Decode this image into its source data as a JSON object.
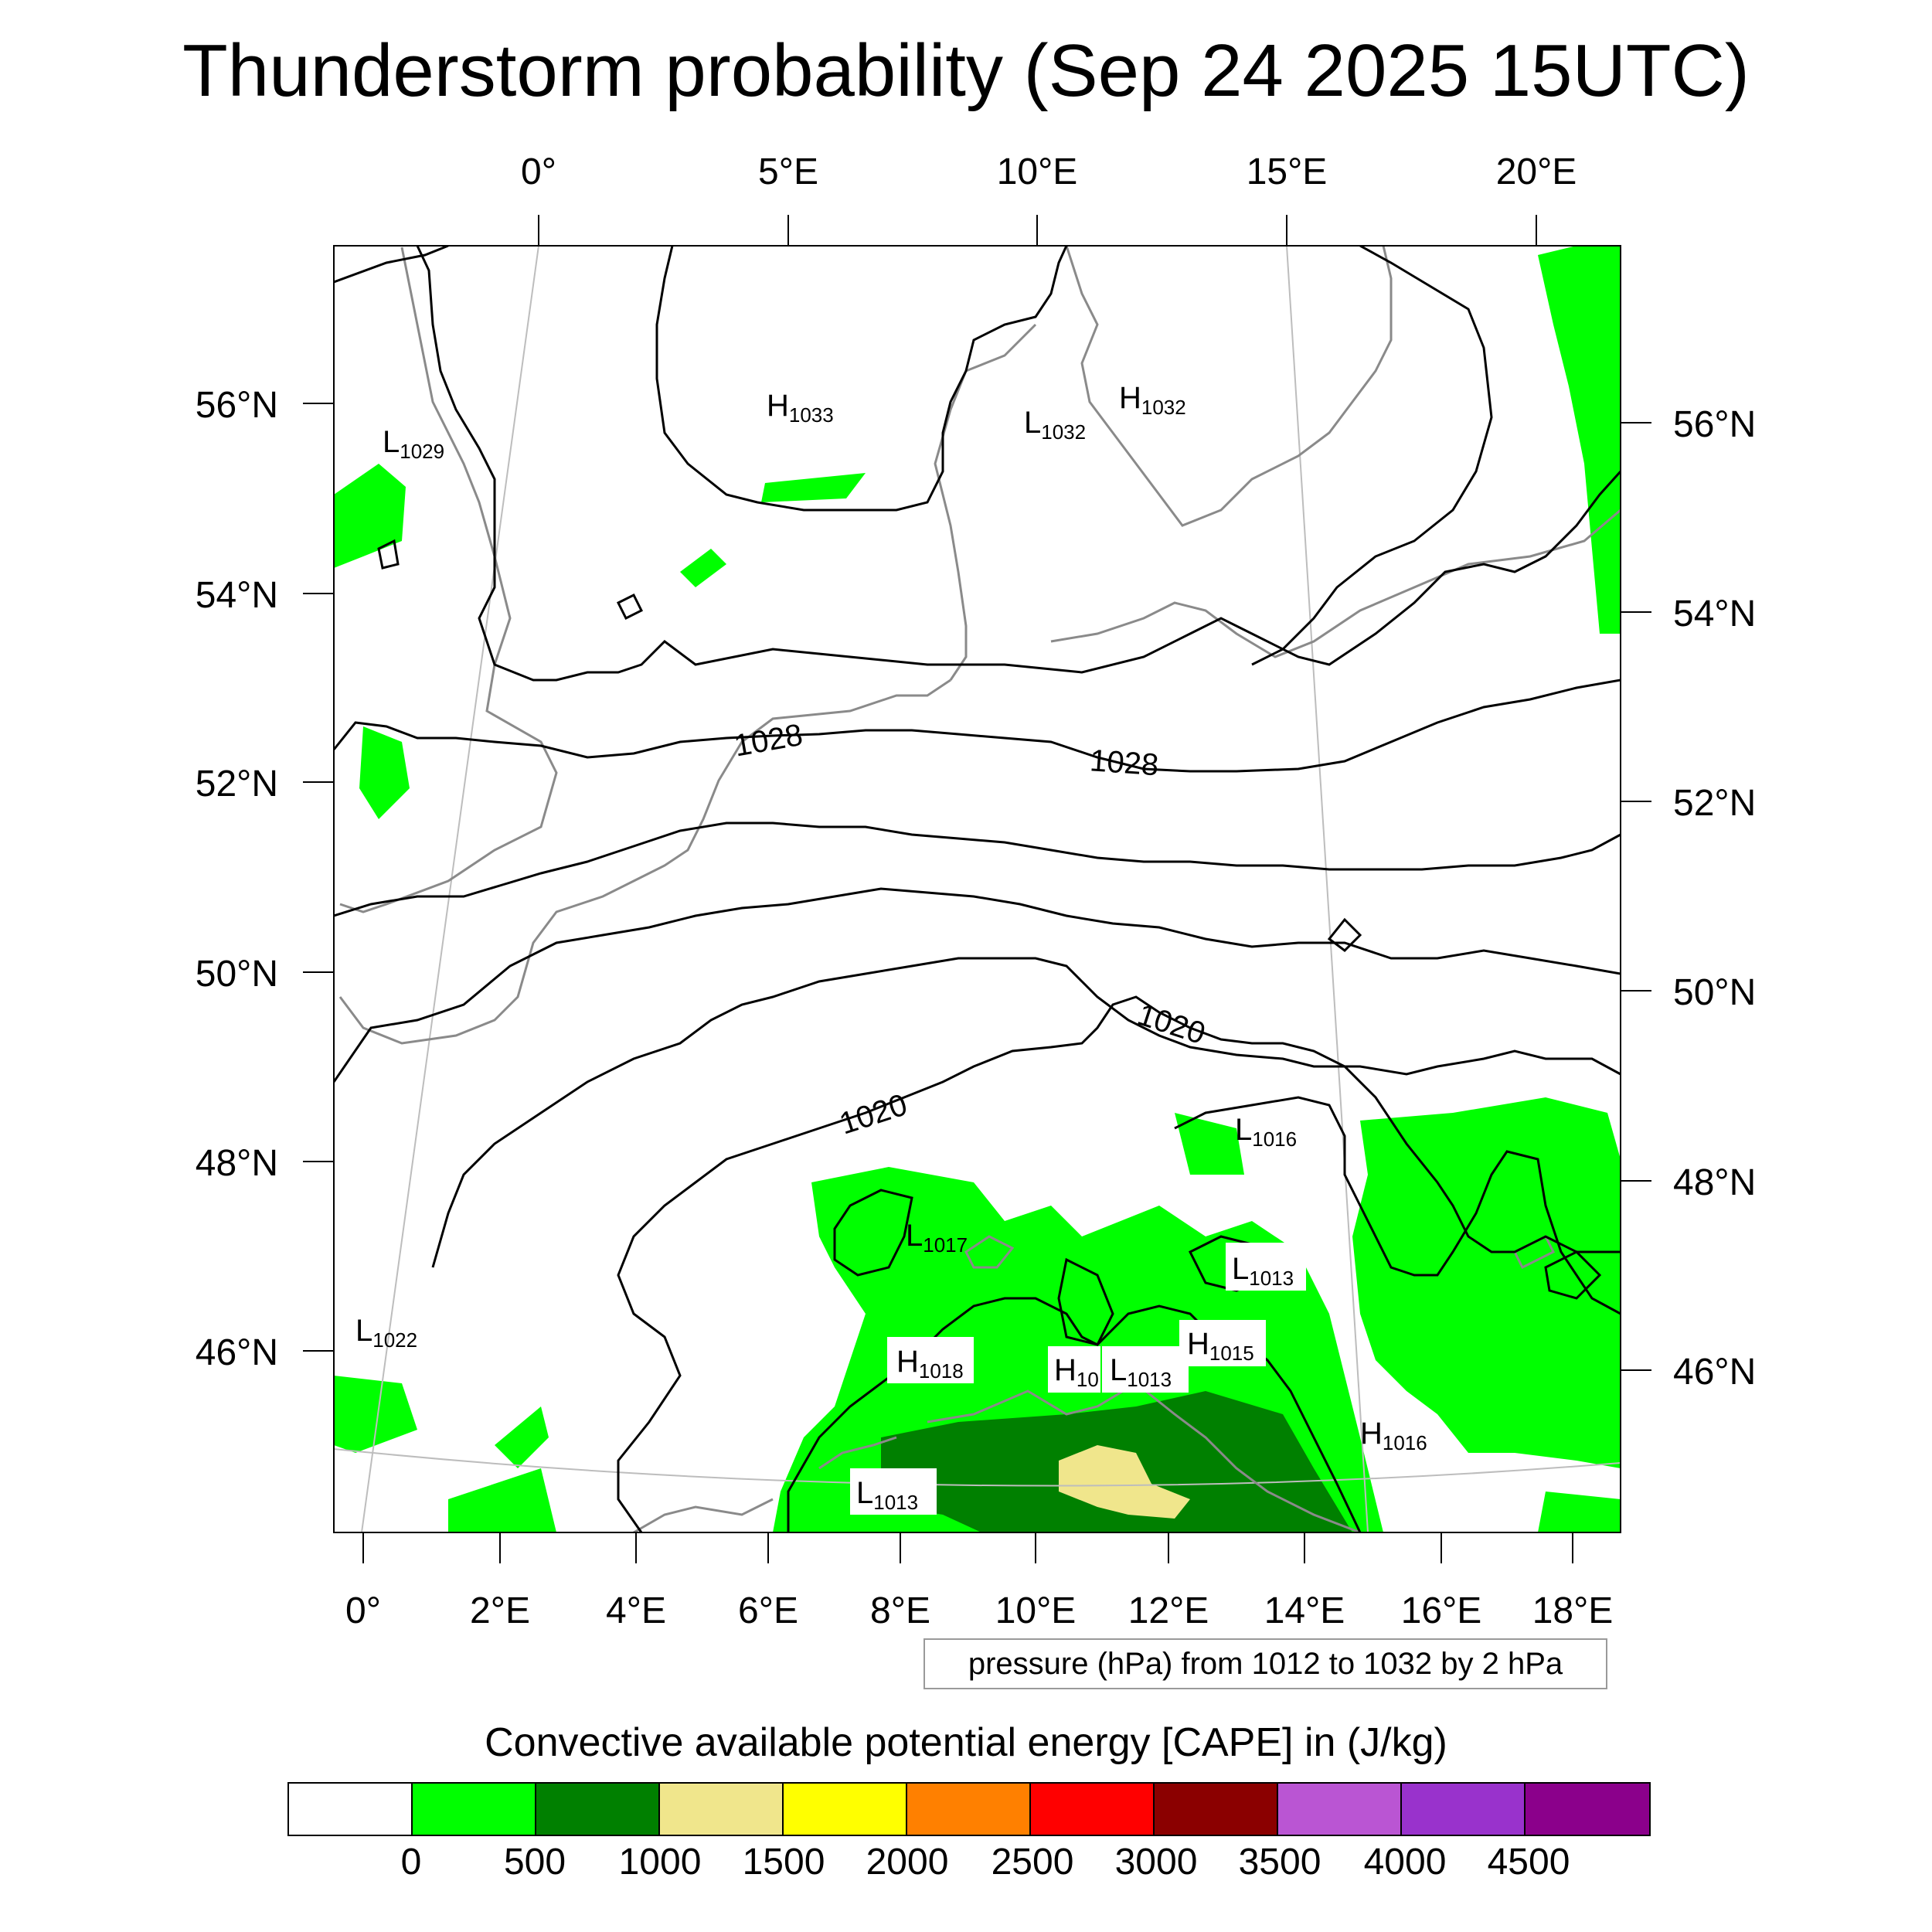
{
  "title": "Thunderstorm probability (Sep 24 2025 15UTC)",
  "axes": {
    "top_lon_labels": [
      "0°",
      "5°E",
      "10°E",
      "15°E",
      "20°E"
    ],
    "bottom_lon_labels": [
      "0°",
      "2°E",
      "4°E",
      "6°E",
      "8°E",
      "10°E",
      "12°E",
      "14°E",
      "16°E",
      "18°E"
    ],
    "left_lat_labels": [
      "56°N",
      "54°N",
      "52°N",
      "50°N",
      "48°N",
      "46°N"
    ],
    "right_lat_labels": [
      "56°N",
      "54°N",
      "52°N",
      "50°N",
      "48°N",
      "46°N"
    ]
  },
  "pressure_centers": [
    {
      "type": "H",
      "value": "1033"
    },
    {
      "type": "H",
      "value": "1032"
    },
    {
      "type": "L",
      "value": "1032"
    },
    {
      "type": "L",
      "value": "1029"
    },
    {
      "type": "L",
      "value": "1022"
    },
    {
      "type": "L",
      "value": "1017"
    },
    {
      "type": "L",
      "value": "1016"
    },
    {
      "type": "L",
      "value": "1013"
    },
    {
      "type": "H",
      "value": "1018"
    },
    {
      "type": "H",
      "value": "1015"
    },
    {
      "type": "L",
      "value": "1013"
    },
    {
      "type": "H",
      "value": "10"
    },
    {
      "type": "H",
      "value": "1016"
    },
    {
      "type": "L",
      "value": "1013"
    }
  ],
  "isobar_labels": [
    "1028",
    "1028",
    "1020",
    "1020"
  ],
  "contour_info": "pressure (hPa) from 1012 to 1032 by 2 hPa",
  "colorbar": {
    "title": "Convective available potential energy [CAPE] in (J/kg)",
    "colors": [
      "#ffffff",
      "#00ff00",
      "#008000",
      "#f0e68c",
      "#ffff00",
      "#ff8000",
      "#ff0000",
      "#8b0000",
      "#ba55d3",
      "#9932cc",
      "#8b008b"
    ],
    "labels": [
      "0",
      "500",
      "1000",
      "1500",
      "2000",
      "2500",
      "3000",
      "3500",
      "4000",
      "4500"
    ]
  }
}
